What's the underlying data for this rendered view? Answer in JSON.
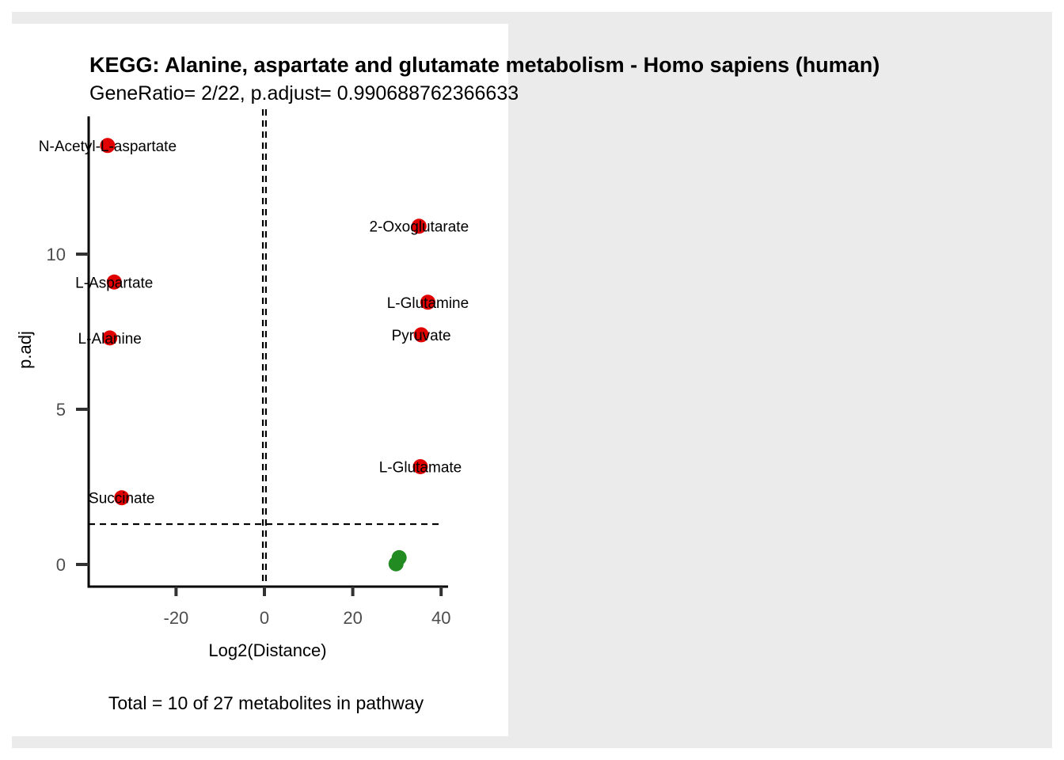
{
  "chart_data": {
    "type": "scatter",
    "title": "KEGG: Alanine, aspartate and glutamate metabolism - Homo sapiens (human)",
    "subtitle": "GeneRatio= 2/22, p.adjust= 0.990688762366633",
    "xlabel": "Log2(Distance)",
    "ylabel": "p.adj",
    "caption": "Total = 10 of 27 metabolites in pathway",
    "xlim": [
      -40,
      41
    ],
    "ylim": [
      -0.7,
      14.5
    ],
    "xticks": [
      -20,
      0,
      20,
      40
    ],
    "yticks": [
      0,
      5,
      10
    ],
    "xtick_labels": [
      "-20",
      "0",
      "20",
      "40"
    ],
    "ytick_labels": [
      "0",
      "5",
      "10"
    ],
    "vlines": [
      -0.35,
      0.35
    ],
    "hline": 1.3,
    "colors": {
      "significant": "#e00000",
      "nonsignificant": "#228b22",
      "reference_line": "#000000"
    },
    "points": [
      {
        "label": "N-Acetyl-L-aspartate",
        "x": -35.5,
        "y": 13.5,
        "group": "significant"
      },
      {
        "label": "2-Oxoglutarate",
        "x": 35,
        "y": 10.9,
        "group": "significant"
      },
      {
        "label": "L-Aspartate",
        "x": -34,
        "y": 9.1,
        "group": "significant"
      },
      {
        "label": "L-Glutamine",
        "x": 37,
        "y": 8.45,
        "group": "significant"
      },
      {
        "label": "Pyruvate",
        "x": 35.5,
        "y": 7.4,
        "group": "significant"
      },
      {
        "label": "L-Alanine",
        "x": -35,
        "y": 7.3,
        "group": "significant"
      },
      {
        "label": "L-Glutamate",
        "x": 35.3,
        "y": 3.15,
        "group": "significant"
      },
      {
        "label": "Succinate",
        "x": -32.3,
        "y": 2.15,
        "group": "significant"
      },
      {
        "label": "",
        "x": 30.5,
        "y": 0.22,
        "group": "nonsignificant"
      },
      {
        "label": "",
        "x": 29.8,
        "y": 0.02,
        "group": "nonsignificant"
      }
    ]
  }
}
